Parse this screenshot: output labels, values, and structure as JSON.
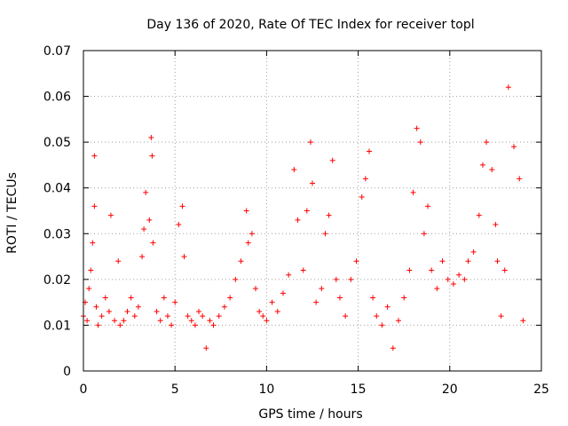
{
  "chart_data": {
    "type": "scatter",
    "title": "Day 136 of 2020, Rate Of TEC Index for receiver topl",
    "xlabel": "GPS time / hours",
    "ylabel": "ROTI / TECUs",
    "xlim": [
      0,
      25
    ],
    "ylim": [
      0,
      0.07
    ],
    "x_ticks": [
      0,
      5,
      10,
      15,
      20,
      25
    ],
    "x_tick_labels": [
      "0",
      "5",
      "10",
      "15",
      "20",
      "25"
    ],
    "y_ticks": [
      0,
      0.01,
      0.02,
      0.03,
      0.04,
      0.05,
      0.06,
      0.07
    ],
    "y_tick_labels": [
      "0",
      "0.01",
      "0.02",
      "0.03",
      "0.04",
      "0.05",
      "0.06",
      "0.07"
    ],
    "grid": true,
    "marker": "plus",
    "marker_color": "#ff0000",
    "series": [
      {
        "name": "ROTI",
        "x": [
          0.0,
          0.1,
          0.2,
          0.3,
          0.4,
          0.5,
          0.6,
          0.6,
          0.7,
          0.8,
          1.0,
          1.2,
          1.4,
          1.5,
          1.7,
          1.9,
          2.0,
          2.2,
          2.4,
          2.6,
          2.8,
          3.0,
          3.2,
          3.3,
          3.4,
          3.6,
          3.7,
          3.75,
          3.8,
          4.0,
          4.2,
          4.4,
          4.6,
          4.8,
          5.0,
          5.2,
          5.4,
          5.5,
          5.7,
          5.9,
          6.1,
          6.3,
          6.5,
          6.7,
          6.9,
          7.1,
          7.4,
          7.7,
          8.0,
          8.3,
          8.6,
          8.9,
          9.0,
          9.2,
          9.4,
          9.6,
          9.8,
          10.0,
          10.3,
          10.6,
          10.9,
          11.2,
          11.5,
          11.7,
          12.0,
          12.2,
          12.4,
          12.5,
          12.7,
          13.0,
          13.2,
          13.4,
          13.6,
          13.8,
          14.0,
          14.3,
          14.6,
          14.9,
          15.2,
          15.4,
          15.6,
          15.8,
          16.0,
          16.3,
          16.6,
          16.9,
          17.2,
          17.5,
          17.8,
          18.0,
          18.2,
          18.4,
          18.6,
          18.8,
          19.0,
          19.3,
          19.6,
          19.9,
          20.2,
          20.5,
          20.8,
          21.0,
          21.3,
          21.6,
          21.8,
          22.0,
          22.3,
          22.5,
          22.6,
          22.8,
          23.0,
          23.2,
          23.5,
          23.8,
          24.0
        ],
        "y": [
          0.012,
          0.015,
          0.011,
          0.018,
          0.022,
          0.028,
          0.047,
          0.036,
          0.014,
          0.01,
          0.012,
          0.016,
          0.013,
          0.034,
          0.011,
          0.024,
          0.01,
          0.011,
          0.013,
          0.016,
          0.012,
          0.014,
          0.025,
          0.031,
          0.039,
          0.033,
          0.051,
          0.047,
          0.028,
          0.013,
          0.011,
          0.016,
          0.012,
          0.01,
          0.015,
          0.032,
          0.036,
          0.025,
          0.012,
          0.011,
          0.01,
          0.013,
          0.012,
          0.005,
          0.011,
          0.01,
          0.012,
          0.014,
          0.016,
          0.02,
          0.024,
          0.035,
          0.028,
          0.03,
          0.018,
          0.013,
          0.012,
          0.011,
          0.015,
          0.013,
          0.017,
          0.021,
          0.044,
          0.033,
          0.022,
          0.035,
          0.05,
          0.041,
          0.015,
          0.018,
          0.03,
          0.034,
          0.046,
          0.02,
          0.016,
          0.012,
          0.02,
          0.024,
          0.038,
          0.042,
          0.048,
          0.016,
          0.012,
          0.01,
          0.014,
          0.005,
          0.011,
          0.016,
          0.022,
          0.039,
          0.053,
          0.05,
          0.03,
          0.036,
          0.022,
          0.018,
          0.024,
          0.02,
          0.019,
          0.021,
          0.02,
          0.024,
          0.026,
          0.034,
          0.045,
          0.05,
          0.044,
          0.032,
          0.024,
          0.012,
          0.022,
          0.062,
          0.049,
          0.042,
          0.011
        ]
      }
    ]
  }
}
